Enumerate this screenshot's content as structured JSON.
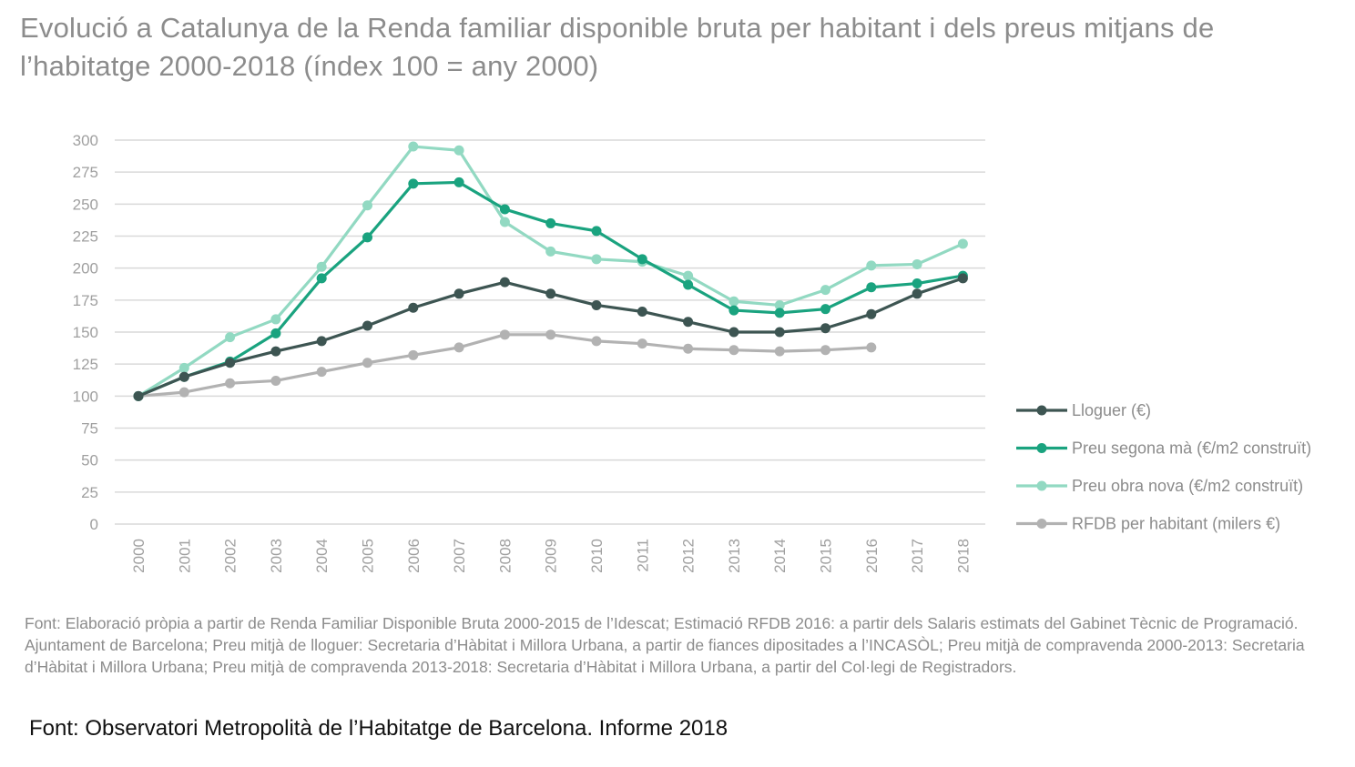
{
  "title": "Evolució a Catalunya de la Renda familiar disponible bruta per habitant i dels preus mitjans de l’habitatge 2000-2018 (índex 100 = any 2000)",
  "source_note": "Font: Elaboració pròpia a partir de Renda Familiar Disponible Bruta 2000-2015 de l’Idescat; Estimació RFDB 2016: a partir dels Salaris estimats del Gabinet Tècnic de Programació. Ajuntament de Barcelona; Preu mitjà de lloguer: Secretaria d’Hàbitat i Millora Urbana, a partir de fiances dipositades a l’INCASÒL; Preu mitjà de compravenda 2000-2013: Secretaria d’Hàbitat i Millora Urbana; Preu mitjà de compravenda 2013-2018: Secretaria d’Hàbitat i Millora Urbana, a partir del Col·legi de Registradors.",
  "source_main": "Font: Observatori Metropolità de l’Habitatge de Barcelona. Informe 2018",
  "chart_data": {
    "type": "line",
    "title": "Evolució a Catalunya de la Renda familiar disponible bruta per habitant i dels preus mitjans de l’habitatge 2000-2018 (índex 100 = any 2000)",
    "xlabel": "",
    "ylabel": "",
    "ylim": [
      0,
      300
    ],
    "yticks": [
      0,
      25,
      50,
      75,
      100,
      125,
      150,
      175,
      200,
      225,
      250,
      275,
      300
    ],
    "grid": true,
    "legend_position": "right",
    "categories": [
      "2000",
      "2001",
      "2002",
      "2003",
      "2004",
      "2005",
      "2006",
      "2007",
      "2008",
      "2009",
      "2010",
      "2011",
      "2012",
      "2013",
      "2014",
      "2015",
      "2016",
      "2017",
      "2018"
    ],
    "series": [
      {
        "name": "Lloguer (€)",
        "color": "#3d5552",
        "values": [
          100,
          115,
          126,
          135,
          143,
          155,
          169,
          180,
          189,
          180,
          171,
          166,
          158,
          150,
          150,
          153,
          164,
          180,
          192
        ]
      },
      {
        "name": "Preu segona mà (€/m2 construït)",
        "color": "#1aa37f",
        "values": [
          100,
          115,
          127,
          149,
          192,
          224,
          266,
          267,
          246,
          235,
          229,
          207,
          187,
          167,
          165,
          168,
          185,
          188,
          194
        ]
      },
      {
        "name": "Preu obra nova (€/m2 construït)",
        "color": "#92d9c2",
        "values": [
          100,
          122,
          146,
          160,
          201,
          249,
          295,
          292,
          236,
          213,
          207,
          205,
          194,
          174,
          171,
          183,
          202,
          203,
          219
        ]
      },
      {
        "name": "RFDB per habitant (milers €)",
        "color": "#b2b2b2",
        "values": [
          100,
          103,
          110,
          112,
          119,
          126,
          132,
          138,
          148,
          148,
          143,
          141,
          137,
          136,
          135,
          136,
          138,
          null,
          null
        ]
      }
    ]
  }
}
